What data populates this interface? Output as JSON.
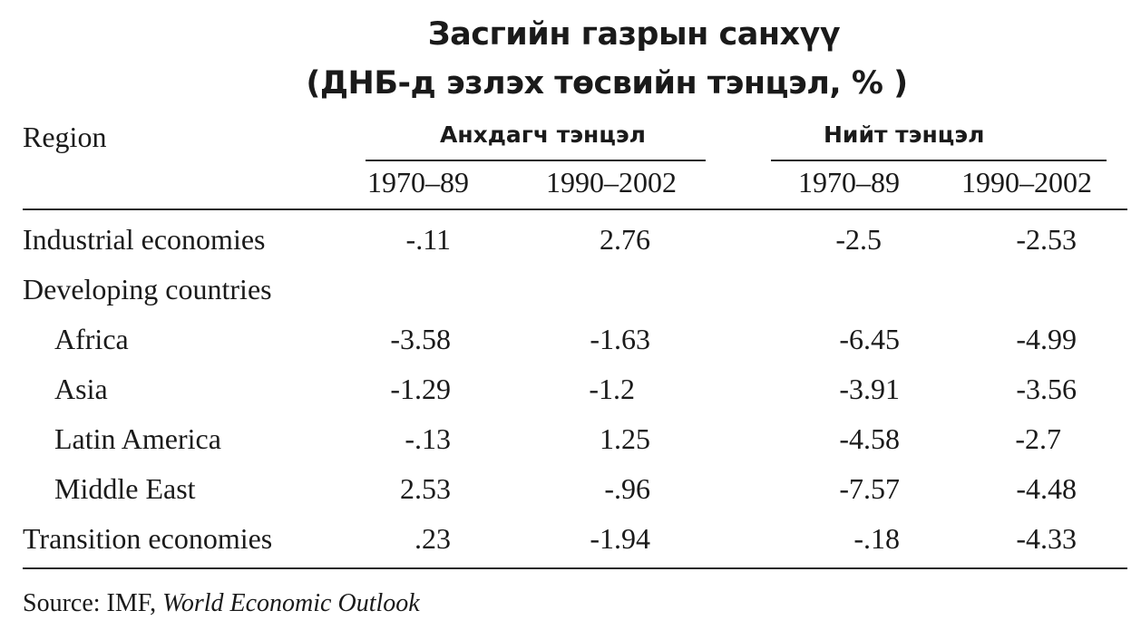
{
  "title": {
    "line1": "Засгийн газрын санхүү",
    "line2": "(ДНБ-д эзлэх төсвийн тэнцэл, % )"
  },
  "table": {
    "region_header": "Region",
    "group_headers": [
      "Анхдагч тэнцэл",
      "Нийт тэнцэл"
    ],
    "period_headers": [
      "1970–89",
      "1990–2002",
      "1970–89",
      "1990–2002"
    ],
    "rows": [
      {
        "label": "Industrial economies",
        "values": [
          "-.11",
          "2.76",
          "-2.5",
          "-2.53"
        ]
      },
      {
        "label": "Developing countries",
        "values": [
          "",
          "",
          "",
          ""
        ]
      },
      {
        "label": "Africa",
        "values": [
          "-3.58",
          "-1.63",
          "-6.45",
          "-4.99"
        ]
      },
      {
        "label": "Asia",
        "values": [
          "-1.29",
          "-1.2",
          "-3.91",
          "-3.56"
        ]
      },
      {
        "label": "Latin America",
        "values": [
          "-.13",
          "1.25",
          "-4.58",
          "-2.7"
        ]
      },
      {
        "label": "Middle East",
        "values": [
          "2.53",
          "-.96",
          "-7.57",
          "-4.48"
        ]
      },
      {
        "label": "Transition economies",
        "values": [
          ".23",
          "-1.94",
          "-.18",
          "-4.33"
        ]
      }
    ]
  },
  "source": {
    "prefix": "Source: IMF, ",
    "publication": "World Economic Outlook"
  }
}
